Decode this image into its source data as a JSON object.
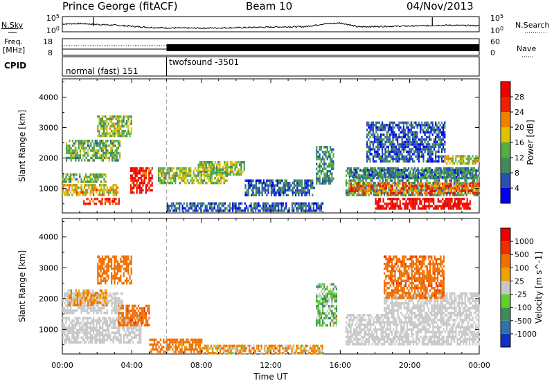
{
  "header": {
    "station": "Prince George (fitACF)",
    "beam": "Beam 10",
    "date": "04/Nov/2013"
  },
  "noise_panel": {
    "left_label": "N.Sky",
    "right_label": "N.Search",
    "right_ticks": [
      "10^5",
      "10^0"
    ],
    "left_ticks": [
      "10^5",
      "10^0"
    ]
  },
  "freq_panel": {
    "left_label_line1": "Freq.",
    "left_label_line2": "[MHz]",
    "left_ticks": [
      "18",
      "8"
    ],
    "right_label": "Nave",
    "right_ticks": [
      "60",
      "0"
    ]
  },
  "cpid_panel": {
    "label": "CPID",
    "segments": [
      {
        "text": "normal (fast) 151",
        "start_hour": 0,
        "end_hour": 6
      },
      {
        "text": "twofsound  -3501",
        "start_hour": 6,
        "end_hour": 24
      }
    ]
  },
  "time_axis": {
    "title": "Time UT",
    "ticks": [
      "00:00",
      "04:00",
      "08:00",
      "12:00",
      "16:00",
      "20:00",
      "00:00"
    ],
    "tick_hours": [
      0,
      4,
      8,
      12,
      16,
      20,
      24
    ]
  },
  "power_panel": {
    "ylabel": "Slant Range [km]",
    "yticks": [
      "1000",
      "2000",
      "3000",
      "4000"
    ],
    "ytick_values": [
      1000,
      2000,
      3000,
      4000
    ],
    "colorbar_label": "Power [dB]",
    "colorbar_ticks": [
      "28",
      "24",
      "20",
      "16",
      "12",
      "8",
      "4"
    ],
    "colorbar_colors": [
      "#0000ee",
      "#2850b0",
      "#3f8c5a",
      "#50b040",
      "#e0c000",
      "#f08000",
      "#ee2000",
      "#ee0000"
    ]
  },
  "velocity_panel": {
    "ylabel": "Slant Range [km]",
    "yticks": [
      "1000",
      "2000",
      "3000",
      "4000"
    ],
    "ytick_values": [
      1000,
      2000,
      3000,
      4000
    ],
    "colorbar_label": "Velocity [m s^-1]",
    "colorbar_ticks": [
      "1000",
      "500",
      "100",
      "25",
      "-25",
      "-100",
      "-500",
      "-1000"
    ],
    "colorbar_colors": [
      "#1030c0",
      "#3070b0",
      "#3f8c5a",
      "#60d030",
      "#c8c8c8",
      "#f0a000",
      "#f07000",
      "#ee3000",
      "#ee0000"
    ]
  },
  "chart_data": {
    "type": "heatmap",
    "time_range_hours": [
      0,
      24
    ],
    "range_km": [
      200,
      4600
    ],
    "power_scale_db": [
      0,
      30
    ],
    "velocity_scale_ms": [
      -1200,
      1200
    ],
    "power_echoes": [
      {
        "t0": 0.0,
        "t1": 3.2,
        "r0": 800,
        "r1": 1150,
        "db": 18
      },
      {
        "t0": 0.0,
        "t1": 2.5,
        "r0": 1200,
        "r1": 1500,
        "db": 12
      },
      {
        "t0": 0.2,
        "t1": 3.3,
        "r0": 1900,
        "r1": 2600,
        "db": 12
      },
      {
        "t0": 2.0,
        "t1": 4.0,
        "r0": 2700,
        "r1": 3400,
        "db": 14
      },
      {
        "t0": 1.2,
        "t1": 3.3,
        "r0": 500,
        "r1": 700,
        "db": 24
      },
      {
        "t0": 3.9,
        "t1": 5.2,
        "r0": 900,
        "r1": 1700,
        "db": 26
      },
      {
        "t0": 5.5,
        "t1": 9.5,
        "r0": 1200,
        "r1": 1700,
        "db": 14
      },
      {
        "t0": 7.8,
        "t1": 10.5,
        "r0": 1500,
        "r1": 1900,
        "db": 14
      },
      {
        "t0": 6.0,
        "t1": 15.0,
        "r0": 250,
        "r1": 550,
        "db": 6
      },
      {
        "t0": 10.5,
        "t1": 14.5,
        "r0": 800,
        "r1": 1300,
        "db": 6
      },
      {
        "t0": 14.6,
        "t1": 15.6,
        "r0": 1200,
        "r1": 2400,
        "db": 10
      },
      {
        "t0": 16.3,
        "t1": 24.0,
        "r0": 800,
        "r1": 1700,
        "db": 10
      },
      {
        "t0": 16.5,
        "t1": 24.0,
        "r0": 850,
        "r1": 1200,
        "db": 22
      },
      {
        "t0": 18.0,
        "t1": 23.5,
        "r0": 350,
        "r1": 700,
        "db": 28
      },
      {
        "t0": 16.5,
        "t1": 23.8,
        "r0": 1350,
        "r1": 1650,
        "db": 8
      },
      {
        "t0": 17.5,
        "t1": 22.0,
        "r0": 1900,
        "r1": 3200,
        "db": 6
      },
      {
        "t0": 22.0,
        "t1": 24.0,
        "r0": 1800,
        "r1": 2100,
        "db": 16
      }
    ],
    "velocity_echoes": [
      {
        "t0": 0.0,
        "t1": 4.5,
        "r0": 600,
        "r1": 1400,
        "v": 0
      },
      {
        "t0": 0.0,
        "t1": 3.5,
        "r0": 1500,
        "r1": 2200,
        "v": 0
      },
      {
        "t0": 0.3,
        "t1": 2.5,
        "r0": 1800,
        "r1": 2300,
        "v": -100
      },
      {
        "t0": 2.0,
        "t1": 4.0,
        "r0": 2500,
        "r1": 3400,
        "v": -300
      },
      {
        "t0": 3.2,
        "t1": 5.0,
        "r0": 1100,
        "r1": 1800,
        "v": -400
      },
      {
        "t0": 5.0,
        "t1": 8.0,
        "r0": 300,
        "r1": 700,
        "v": -200
      },
      {
        "t0": 8.0,
        "t1": 15.0,
        "r0": 250,
        "r1": 500,
        "v": -80
      },
      {
        "t0": 14.6,
        "t1": 15.8,
        "r0": 1100,
        "r1": 2500,
        "v": 80
      },
      {
        "t0": 16.3,
        "t1": 24.0,
        "r0": 500,
        "r1": 1500,
        "v": 0
      },
      {
        "t0": 18.5,
        "t1": 24.0,
        "r0": 1500,
        "r1": 2200,
        "v": 0
      },
      {
        "t0": 18.5,
        "t1": 22.0,
        "r0": 2000,
        "r1": 3400,
        "v": -400
      }
    ],
    "noise_search_trace": [
      [
        0,
        0.45
      ],
      [
        1,
        0.5
      ],
      [
        2,
        0.42
      ],
      [
        3,
        0.35
      ],
      [
        4,
        0.25
      ],
      [
        5,
        0.15
      ],
      [
        6,
        0.1
      ],
      [
        8,
        0.08
      ],
      [
        10,
        0.12
      ],
      [
        12,
        0.18
      ],
      [
        14,
        0.22
      ],
      [
        15,
        0.45
      ],
      [
        16,
        0.55
      ],
      [
        16.5,
        0.4
      ],
      [
        17,
        0.2
      ],
      [
        19,
        0.25
      ],
      [
        21,
        0.3
      ],
      [
        22,
        0.35
      ],
      [
        24,
        0.3
      ]
    ],
    "freq_panel_marks": {
      "nave_solid_from_hour": 6
    }
  }
}
